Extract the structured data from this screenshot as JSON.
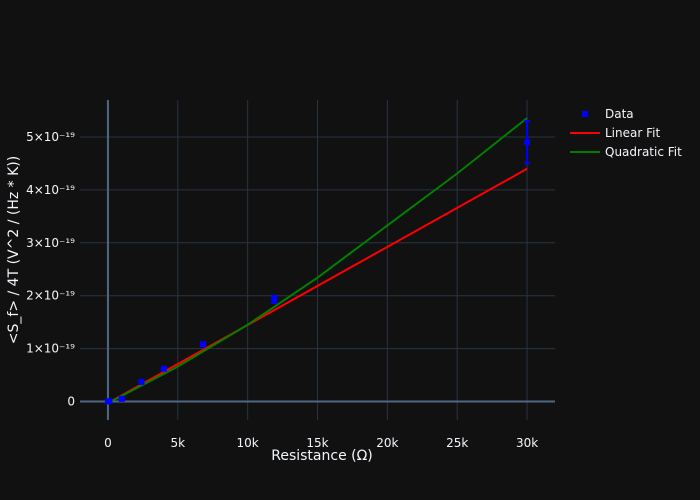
{
  "chart_data": {
    "type": "scatter",
    "title": "",
    "xlabel": "Resistance (Ω)",
    "ylabel": "<S_f> / 4T (V^2 / (Hz * K))",
    "xlim": [
      -2000,
      32000
    ],
    "ylim": [
      -3.5e-20,
      5.7e-19
    ],
    "grid": true,
    "legend_position": "top-right",
    "x_ticks": [
      0,
      5000,
      10000,
      15000,
      20000,
      25000,
      30000
    ],
    "x_tick_labels": [
      "0",
      "5k",
      "10k",
      "15k",
      "20k",
      "25k",
      "30k"
    ],
    "y_ticks": [
      0,
      1e-19,
      2e-19,
      3e-19,
      4e-19,
      5e-19
    ],
    "y_tick_labels": [
      "0",
      "1×10⁻¹⁹",
      "2×10⁻¹⁹",
      "3×10⁻¹⁹",
      "4×10⁻¹⁹",
      "5×10⁻¹⁹"
    ],
    "series": [
      {
        "name": "Data",
        "kind": "markers",
        "color": "#0000ff",
        "x": [
          0,
          100,
          1000,
          2400,
          4000,
          6800,
          11900,
          30000
        ],
        "y": [
          0,
          6e-22,
          5e-21,
          3.7e-20,
          6.2e-20,
          1.08e-19,
          1.93e-19,
          4.9e-19
        ],
        "error": [
          0,
          0,
          0,
          1e-21,
          1.5e-21,
          4e-21,
          7e-21,
          4e-20
        ]
      },
      {
        "name": "Linear Fit",
        "kind": "line",
        "color": "#ff0000",
        "x": [
          0,
          30000
        ],
        "y": [
          -3e-21,
          4.4e-19
        ]
      },
      {
        "name": "Quadratic Fit",
        "kind": "line",
        "color": "#008000",
        "x": [
          0,
          5000,
          10000,
          15000,
          20000,
          25000,
          30000
        ],
        "y": [
          -3e-21,
          6.6e-20,
          1.45e-19,
          2.34e-19,
          3.33e-19,
          4.31e-19,
          5.36e-19
        ]
      }
    ]
  }
}
